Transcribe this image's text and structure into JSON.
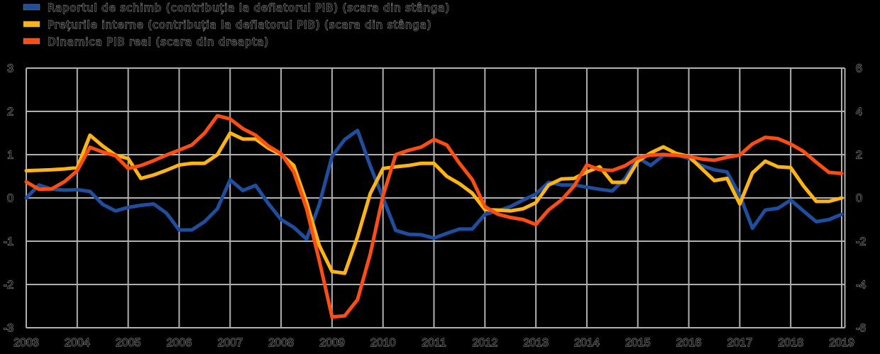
{
  "legend": {
    "items": [
      {
        "label": "Raportul de schimb (contribuția la deflatorul PIB) (scara din stânga)",
        "color": "#1f4e9e"
      },
      {
        "label": "Prețurile interne (contribuția la deflatorul PIB) (scara din stânga)",
        "color": "#fcb514"
      },
      {
        "label": "Dinamica PIB real (scara din dreapta)",
        "color": "#fc4e12"
      }
    ]
  },
  "chart_data": {
    "type": "line",
    "x_start": 2003,
    "x_step": 0.25,
    "x_ticks": [
      2003,
      2004,
      2005,
      2006,
      2007,
      2008,
      2009,
      2010,
      2011,
      2012,
      2013,
      2014,
      2015,
      2016,
      2017,
      2018,
      2019
    ],
    "left_axis": {
      "ticks": [
        3,
        2,
        1,
        0,
        -1,
        -2,
        -3
      ],
      "min": -3,
      "max": 3
    },
    "right_axis": {
      "ticks": [
        6,
        4,
        2,
        0,
        -2,
        -4,
        -6
      ],
      "min": -6,
      "max": 6
    },
    "grid": true,
    "background": "#000000",
    "gridline_color": "#b0b0b0",
    "series": [
      {
        "name": "Raportul de schimb (contribuția la deflatorul PIB) (scara din stânga)",
        "axis": "left",
        "color": "#1f4e9e",
        "values": [
          0.0,
          0.3,
          0.2,
          0.18,
          0.19,
          0.15,
          -0.15,
          -0.3,
          -0.22,
          -0.17,
          -0.14,
          -0.35,
          -0.74,
          -0.74,
          -0.55,
          -0.25,
          0.42,
          0.17,
          0.29,
          -0.13,
          -0.5,
          -0.68,
          -0.95,
          -0.15,
          0.96,
          1.35,
          1.56,
          0.74,
          0.0,
          -0.75,
          -0.84,
          -0.85,
          -0.93,
          -0.82,
          -0.72,
          -0.72,
          -0.38,
          -0.3,
          -0.2,
          -0.05,
          0.09,
          0.36,
          0.3,
          0.3,
          0.25,
          0.2,
          0.16,
          0.45,
          0.93,
          0.75,
          0.98,
          1.0,
          0.91,
          0.75,
          0.65,
          0.6,
          0.06,
          -0.7,
          -0.28,
          -0.24,
          -0.05,
          -0.3,
          -0.55,
          -0.5,
          -0.38
        ]
      },
      {
        "name": "Prețurile interne (contribuția la deflatorul PIB) (scara din stânga)",
        "axis": "left",
        "color": "#fcb514",
        "values": [
          0.63,
          0.64,
          0.65,
          0.67,
          0.7,
          1.45,
          1.2,
          0.99,
          0.91,
          0.45,
          0.53,
          0.64,
          0.76,
          0.8,
          0.8,
          1.0,
          1.5,
          1.36,
          1.36,
          1.15,
          1.0,
          0.75,
          -0.1,
          -1.1,
          -1.7,
          -1.74,
          -0.9,
          0.1,
          0.68,
          0.72,
          0.75,
          0.8,
          0.8,
          0.5,
          0.33,
          0.11,
          -0.27,
          -0.28,
          -0.3,
          -0.25,
          -0.11,
          0.3,
          0.44,
          0.45,
          0.6,
          0.72,
          0.36,
          0.36,
          0.85,
          1.04,
          1.18,
          1.03,
          0.96,
          0.68,
          0.4,
          0.45,
          -0.14,
          0.58,
          0.85,
          0.72,
          0.7,
          0.28,
          -0.08,
          -0.08,
          0.0
        ]
      },
      {
        "name": "Dinamica PIB real (scara din dreapta)",
        "axis": "right",
        "color": "#fc4e12",
        "values": [
          0.74,
          0.4,
          0.42,
          0.75,
          1.26,
          2.34,
          2.12,
          1.95,
          1.36,
          1.5,
          1.72,
          1.98,
          2.21,
          2.45,
          3.0,
          3.8,
          3.65,
          3.2,
          2.9,
          2.4,
          2.05,
          1.2,
          -0.5,
          -2.9,
          -5.5,
          -5.45,
          -4.7,
          -2.6,
          0.1,
          2.0,
          2.2,
          2.35,
          2.7,
          2.45,
          1.6,
          0.85,
          -0.4,
          -0.75,
          -0.9,
          -1.0,
          -1.23,
          -0.55,
          -0.1,
          0.55,
          1.53,
          1.3,
          1.27,
          1.49,
          1.85,
          1.98,
          2.01,
          1.97,
          1.91,
          1.8,
          1.74,
          1.88,
          1.98,
          2.5,
          2.8,
          2.74,
          2.49,
          2.15,
          1.65,
          1.18,
          1.13
        ]
      }
    ]
  }
}
